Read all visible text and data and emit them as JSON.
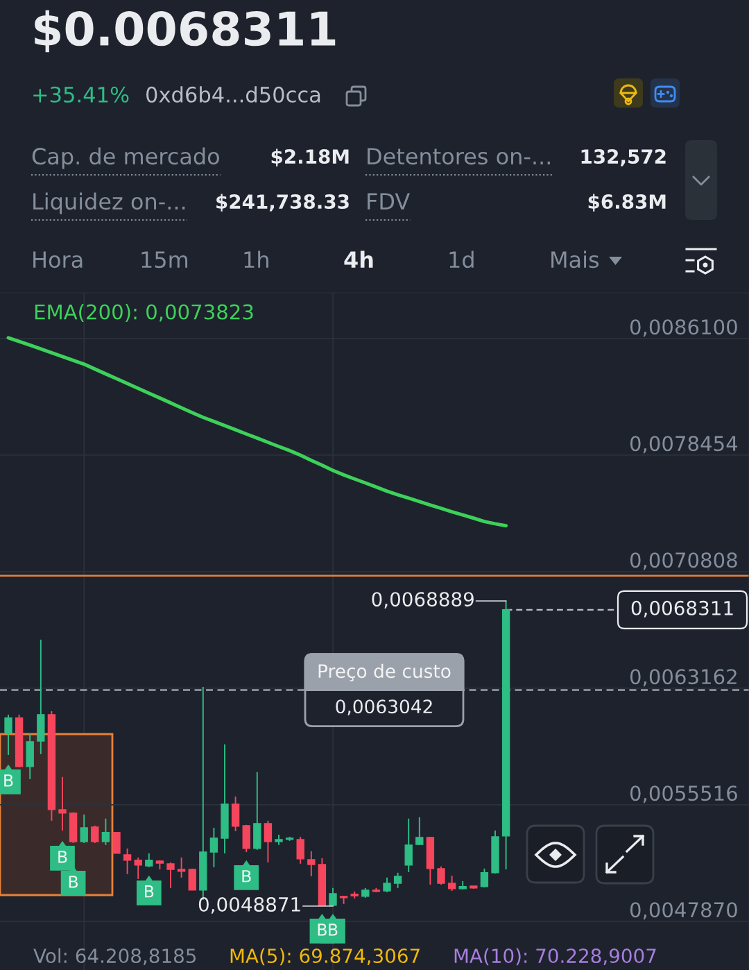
{
  "chart_data": {
    "type": "candlestick",
    "title": "$0.0068311",
    "categories": [
      null,
      null,
      null,
      null,
      null,
      null,
      null,
      null,
      null,
      null,
      null,
      null,
      null,
      null,
      null,
      null,
      null,
      null,
      null,
      null,
      null,
      null,
      null,
      null,
      null,
      null,
      null,
      null,
      null,
      null,
      null,
      null,
      null,
      null,
      null,
      null,
      null,
      null,
      null,
      null,
      null,
      null,
      null,
      null,
      null,
      null,
      null
    ],
    "ohlc": [
      [
        0.00602,
        0.006143,
        0.005879,
        0.006121
      ],
      [
        0.006121,
        0.006143,
        0.005797,
        0.005802
      ],
      [
        0.005802,
        0.00602,
        0.00572,
        0.005966
      ],
      [
        0.00597,
        0.006635,
        0.005884,
        0.006143
      ],
      [
        0.006143,
        0.006166,
        0.005447,
        0.00552
      ],
      [
        0.00552,
        0.005734,
        0.005383,
        0.005497
      ],
      [
        0.005497,
        0.005502,
        0.005301,
        0.00531
      ],
      [
        0.00531,
        0.005488,
        0.005301,
        0.005401
      ],
      [
        0.005406,
        0.005415,
        0.005301,
        0.00531
      ],
      [
        0.00531,
        0.005461,
        0.005288,
        0.00537
      ],
      [
        0.00537,
        0.00537,
        0.005233,
        0.005233
      ],
      [
        0.005224,
        0.005265,
        0.005097,
        0.005188
      ],
      [
        0.005188,
        0.005206,
        0.005065,
        0.005156
      ],
      [
        0.005151,
        0.005233,
        0.005142,
        0.005188
      ],
      [
        0.005183,
        0.005188,
        0.005128,
        0.005169
      ],
      [
        0.005165,
        0.005174,
        0.005006,
        0.005128
      ],
      [
        0.005128,
        0.005206,
        0.005074,
        0.005115
      ],
      [
        0.005128,
        0.005133,
        0.004992,
        0.004992
      ],
      [
        0.004992,
        0.006325,
        0.004928,
        0.005242
      ],
      [
        0.005242,
        0.005401,
        0.005142,
        0.005333
      ],
      [
        0.005333,
        0.005948,
        0.005233,
        0.005556
      ],
      [
        0.005556,
        0.005606,
        0.005379,
        0.005411
      ],
      [
        0.005415,
        0.00542,
        0.005242,
        0.005265
      ],
      [
        0.005265,
        0.005766,
        0.005256,
        0.005429
      ],
      [
        0.005429,
        0.005447,
        0.005174,
        0.00531
      ],
      [
        0.00531,
        0.005356,
        0.005288,
        0.005324
      ],
      [
        0.005324,
        0.005342,
        0.005315,
        0.005333
      ],
      [
        0.005324,
        0.005342,
        0.005165,
        0.005197
      ],
      [
        0.005192,
        0.005247,
        0.005083,
        0.00516
      ],
      [
        0.00516,
        0.005201,
        0.004892,
        0.004892
      ],
      [
        0.004892,
        0.005006,
        0.0048871,
        0.004969
      ],
      [
        0.004951,
        0.004955,
        0.004901,
        0.004942
      ],
      [
        0.004965,
        0.004983,
        0.004937,
        0.004955
      ],
      [
        0.004951,
        0.005006,
        0.004942,
        0.004992
      ],
      [
        0.004992,
        0.005006,
        0.004978,
        0.004983
      ],
      [
        0.004987,
        0.005074,
        0.004978,
        0.005037
      ],
      [
        0.005037,
        0.005106,
        0.005006,
        0.005083
      ],
      [
        0.005156,
        0.005461,
        0.00511,
        0.005288
      ],
      [
        0.005292,
        0.00547,
        0.005288,
        0.005338
      ],
      [
        0.005338,
        0.005342,
        0.005028,
        0.005133
      ],
      [
        0.005133,
        0.005147,
        0.005028,
        0.005037
      ],
      [
        0.005037,
        0.005087,
        0.004987,
        0.005001
      ],
      [
        0.005001,
        0.005051,
        0.004996,
        0.005015
      ],
      [
        0.005019,
        0.005019,
        0.005001,
        0.005006
      ],
      [
        0.005015,
        0.005133,
        0.00501,
        0.005106
      ],
      [
        0.005106,
        0.005383,
        0.005101,
        0.005342
      ],
      [
        0.005347,
        0.0068889,
        0.005128,
        0.0068311
      ]
    ],
    "colors": [
      "#2ebd85",
      "#f6465d",
      "#2ebd85",
      "#2ebd85",
      "#f6465d",
      "#f6465d",
      "#f6465d",
      "#2ebd85",
      "#f6465d",
      "#2ebd85",
      "#f6465d",
      "#f6465d",
      "#f6465d",
      "#2ebd85",
      "#f6465d",
      "#f6465d",
      "#f6465d",
      "#f6465d",
      "#2ebd85",
      "#2ebd85",
      "#2ebd85",
      "#f6465d",
      "#f6465d",
      "#2ebd85",
      "#f6465d",
      "#2ebd85",
      "#2ebd85",
      "#f6465d",
      "#f6465d",
      "#f6465d",
      "#2ebd85",
      "#f6465d",
      "#f6465d",
      "#2ebd85",
      "#f6465d",
      "#2ebd85",
      "#2ebd85",
      "#2ebd85",
      "#2ebd85",
      "#f6465d",
      "#f6465d",
      "#f6465d",
      "#2ebd85",
      "#f6465d",
      "#2ebd85",
      "#2ebd85",
      "#2ebd85"
    ],
    "series": [
      {
        "type": "line",
        "name": "EMA(200): 0,0073823",
        "color": "#3dd15a",
        "values": [
          0.008615,
          0.008591,
          0.008567,
          0.008542,
          0.008517,
          0.008492,
          0.008467,
          0.008442,
          0.00841,
          0.008378,
          0.008347,
          0.008315,
          0.008283,
          0.008251,
          0.00822,
          0.008188,
          0.008156,
          0.008124,
          0.008093,
          0.008066,
          0.008039,
          0.008012,
          0.007984,
          0.007957,
          0.007929,
          0.007902,
          0.007875,
          0.007845,
          0.007811,
          0.007779,
          0.007745,
          0.007716,
          0.007689,
          0.007663,
          0.007636,
          0.007609,
          0.007585,
          0.007563,
          0.007541,
          0.007518,
          0.007496,
          0.007474,
          0.007453,
          0.007432,
          0.00741,
          0.007395,
          0.0073823
        ]
      },
      {
        "type": "scatter",
        "color": "#2ebd85",
        "marker": "square",
        "values": [
          0.005702,
          null,
          null,
          null,
          null,
          0.005201,
          0.005037,
          null,
          null,
          null,
          null,
          null,
          null,
          0.004974,
          null,
          null,
          null,
          null,
          null,
          null,
          null,
          null,
          0.005074,
          null,
          null,
          null,
          null,
          null,
          null,
          0.004723,
          0.004723,
          null,
          null,
          null,
          null,
          null,
          null,
          null,
          null,
          null,
          null,
          null,
          null,
          null,
          null,
          null,
          null
        ],
        "value_labels": [
          "B",
          null,
          null,
          null,
          null,
          "B",
          "B",
          null,
          null,
          null,
          null,
          null,
          null,
          "B",
          null,
          null,
          null,
          null,
          null,
          null,
          null,
          null,
          "B",
          null,
          null,
          null,
          null,
          null,
          null,
          "B",
          "B",
          null,
          null,
          null,
          null,
          null,
          null,
          null,
          null,
          null,
          null,
          null,
          null,
          null,
          null,
          null,
          null
        ]
      }
    ],
    "ylim": [
      0.004468,
      0.00891
    ],
    "yticks": [
      {
        "value": 0.00861,
        "label": "0,0086100"
      },
      {
        "value": 0.0078454,
        "label": "0,0078454"
      },
      {
        "value": 0.0070808,
        "label": "0,0070808"
      },
      {
        "value": 0.0063162,
        "label": "0,0063162"
      },
      {
        "value": 0.0055516,
        "label": "0,0055516"
      },
      {
        "value": 0.004787,
        "label": "0,0047870"
      }
    ],
    "tick_labels": "y",
    "grid": true,
    "ref_lines": [
      {
        "axis": "y",
        "value": 0.007054,
        "color": "#e8813a",
        "line_style": "solid"
      },
      {
        "axis": "y",
        "value": 0.0063042,
        "label": "Preço de custo\n0,0063042",
        "color": "#9ba1aa",
        "line_style": "dashed"
      },
      {
        "axis": "y",
        "value": 0.0068311,
        "label": "0,0068311",
        "color": "#b7bdc6",
        "line_style": "dashed"
      }
    ],
    "annotations": [
      "+35.41%",
      "0xd6b4...d50cca",
      "Cap. de mercado",
      "$2.18M",
      "Detentores on-...",
      "132,572",
      "Liquidez on-...",
      "$241,738.33",
      "FDV",
      "$6.83M",
      "Hora",
      "15m",
      "1h",
      "4h",
      "1d",
      "Mais",
      "Vol: 64.208,8185",
      "MA(5): 69.874,3067",
      "MA(10): 70.228,9007",
      "0,0068889",
      "0,0048871"
    ]
  }
}
